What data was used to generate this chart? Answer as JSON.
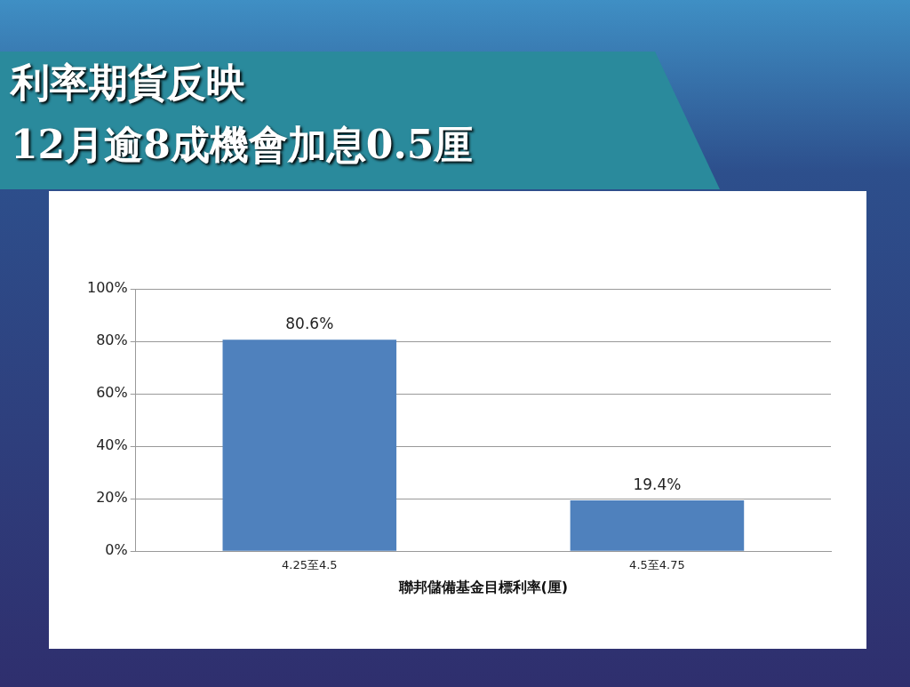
{
  "chart_data": {
    "type": "bar",
    "title": "利率期貨反映\n12月逾8成機會加息0.5厘",
    "xlabel": "聯邦儲備基金目標利率(厘)",
    "categories": [
      "4.25至4.5",
      "4.5至4.75"
    ],
    "values": [
      80.6,
      19.4
    ],
    "value_labels": [
      "80.6%",
      "19.4%"
    ],
    "color": "#4f81bd",
    "ylim": [
      0,
      100
    ],
    "yticks": [
      {
        "value": 0,
        "label": "0%"
      },
      {
        "value": 20,
        "label": "20%"
      },
      {
        "value": 40,
        "label": "40%"
      },
      {
        "value": 60,
        "label": "60%"
      },
      {
        "value": 80,
        "label": "80%"
      },
      {
        "value": 100,
        "label": "100%"
      }
    ],
    "grid": "y"
  }
}
